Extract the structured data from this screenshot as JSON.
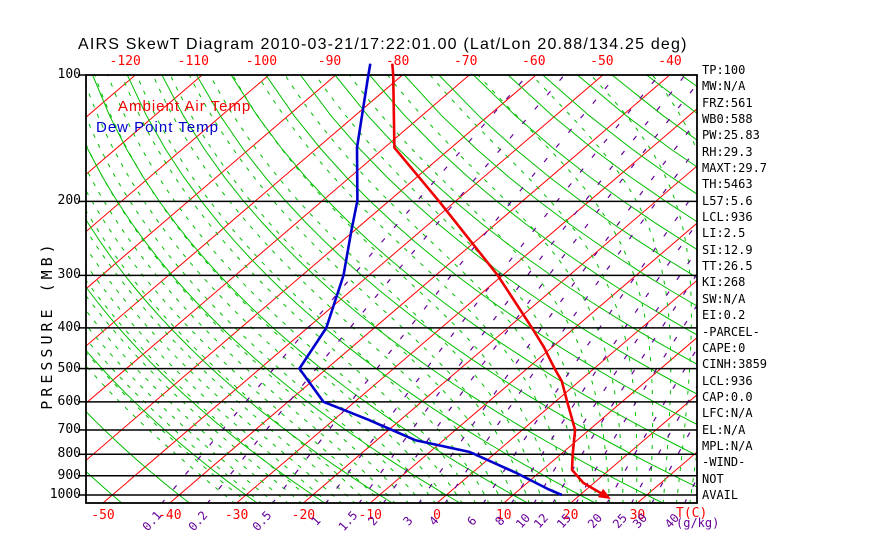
{
  "title": "AIRS SkewT Diagram 2010-03-21/17:22:01.00 (Lat/Lon 20.88/134.25 deg)",
  "colors": {
    "temp_curve": "#ee0000",
    "dew_curve": "#0000cc",
    "isotherm": "#ff0000",
    "adiabat_green": "#00bf00",
    "mixing_purple": "#660099",
    "axis_black": "#000000",
    "tick_red": "#ff0000"
  },
  "legend": {
    "temp": "Ambient Air Temp",
    "dew": "Dew Point Temp"
  },
  "y_axis": {
    "label": "PRESSURE (MB)",
    "ticks": [
      100,
      200,
      300,
      400,
      500,
      600,
      700,
      800,
      900,
      1000
    ]
  },
  "x_axis": {
    "label": "T(C)",
    "mixing_unit_label": "(g/kg)",
    "top_ticks": [
      -120,
      -110,
      -100,
      -90,
      -80,
      -70,
      -60,
      -50,
      -40
    ],
    "bottom_ticks": [
      -50,
      -40,
      -30,
      -20,
      -10,
      0,
      10,
      20,
      30
    ]
  },
  "chart_data": {
    "type": "line",
    "variant": "skew-t-log-p",
    "title": "AIRS SkewT Diagram 2010-03-21/17:22:01.00 (Lat/Lon 20.88/134.25 deg)",
    "xlabel": "T(C)",
    "ylabel": "PRESSURE (MB)",
    "x_range_c": [
      -130,
      40
    ],
    "p_range_mb": [
      100,
      1050
    ],
    "grid": {
      "isotherms_c": {
        "min": -160,
        "max": 40,
        "step": 10
      },
      "dry_adiabats_theta_c": {
        "min": -60,
        "max": 180,
        "step": 10
      },
      "moist_adiabats_surface_t_c": {
        "min": -30,
        "max": 44,
        "step": 2
      },
      "mixing_ratio_g_kg": [
        0.1,
        0.2,
        0.5,
        1,
        1.5,
        2,
        3,
        4,
        6,
        8,
        10,
        12,
        15,
        20,
        25,
        30,
        40
      ]
    },
    "series": [
      {
        "name": "Ambient Air Temp",
        "color": "#ee0000",
        "arrow_end": true,
        "points_p_t": [
          [
            94,
            -83.5
          ],
          [
            100,
            -81.4
          ],
          [
            149,
            -68.5
          ],
          [
            200,
            -52.4
          ],
          [
            300,
            -30.7
          ],
          [
            400,
            -16.4
          ],
          [
            444,
            -11.3
          ],
          [
            500,
            -5.9
          ],
          [
            536,
            -2.6
          ],
          [
            600,
            1.8
          ],
          [
            700,
            7.9
          ],
          [
            800,
            11.8
          ],
          [
            871,
            14.4
          ],
          [
            936,
            18.4
          ],
          [
            1000,
            23.6
          ]
        ]
      },
      {
        "name": "Dew Point Temp",
        "color": "#0000cc",
        "arrow_end": false,
        "points_p_t": [
          [
            94,
            -86.8
          ],
          [
            103,
            -84.3
          ],
          [
            149,
            -74.1
          ],
          [
            199,
            -64.8
          ],
          [
            236,
            -60.3
          ],
          [
            300,
            -53.8
          ],
          [
            400,
            -47.2
          ],
          [
            500,
            -44.1
          ],
          [
            600,
            -34.7
          ],
          [
            662,
            -24.8
          ],
          [
            740,
            -14.3
          ],
          [
            790,
            -4.0
          ],
          [
            887,
            6.7
          ],
          [
            967,
            14.1
          ],
          [
            1000,
            17.3
          ]
        ]
      }
    ]
  },
  "stats": [
    "TP:100",
    "MW:N/A",
    "FRZ:561",
    "WB0:588",
    "PW:25.83",
    "RH:29.3",
    "MAXT:29.7",
    "TH:5463",
    "L57:5.6",
    "LCL:936",
    "LI:2.5",
    "SI:12.9",
    "TT:26.5",
    "KI:268",
    "SW:N/A",
    "EI:0.2",
    "-PARCEL-",
    "CAPE:0",
    "CINH:3859",
    "LCL:936",
    "CAP:0.0",
    "LFC:N/A",
    "EL:N/A",
    "MPL:N/A",
    "-WIND-",
    "NOT",
    "AVAIL"
  ]
}
